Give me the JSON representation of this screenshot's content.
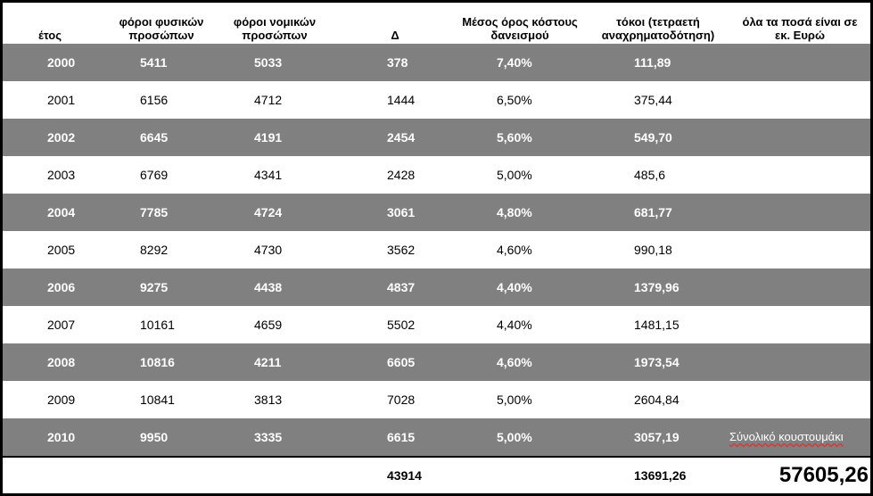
{
  "headers": {
    "year": "έτος",
    "fp": "φόροι φυσικών\nπροσώπων",
    "np": "φόροι νομικών\nπροσώπων",
    "d": "Δ",
    "rate": "Μέσος όρος κόστους\nδανεισμού",
    "interest": "τόκοι (τετραετή\nαναχρηματοδότηση)",
    "note": "όλα τα ποσά είναι σε\nεκ. Ευρώ"
  },
  "rows": [
    {
      "year": "2000",
      "fp": "5411",
      "np": "5033",
      "d": "378",
      "rate": "7,40%",
      "interest": "111,89"
    },
    {
      "year": "2001",
      "fp": "6156",
      "np": "4712",
      "d": "1444",
      "rate": "6,50%",
      "interest": "375,44"
    },
    {
      "year": "2002",
      "fp": "6645",
      "np": "4191",
      "d": "2454",
      "rate": "5,60%",
      "interest": "549,70"
    },
    {
      "year": "2003",
      "fp": "6769",
      "np": "4341",
      "d": "2428",
      "rate": "5,00%",
      "interest": "485,6"
    },
    {
      "year": "2004",
      "fp": "7785",
      "np": "4724",
      "d": "3061",
      "rate": "4,80%",
      "interest": "681,77"
    },
    {
      "year": "2005",
      "fp": "8292",
      "np": "4730",
      "d": "3562",
      "rate": "4,60%",
      "interest": "990,18"
    },
    {
      "year": "2006",
      "fp": "9275",
      "np": "4438",
      "d": "4837",
      "rate": "4,40%",
      "interest": "1379,96"
    },
    {
      "year": "2007",
      "fp": "10161",
      "np": "4659",
      "d": "5502",
      "rate": "4,40%",
      "interest": "1481,15"
    },
    {
      "year": "2008",
      "fp": "10816",
      "np": "4211",
      "d": "6605",
      "rate": "4,60%",
      "interest": "1973,54"
    },
    {
      "year": "2009",
      "fp": "10841",
      "np": "3813",
      "d": "7028",
      "rate": "5,00%",
      "interest": "2604,84"
    },
    {
      "year": "2010",
      "fp": "9950",
      "np": "3335",
      "d": "6615",
      "rate": "5,00%",
      "interest": "3057,19",
      "note": "Σύνολικό κουστουμάκι"
    }
  ],
  "totals": {
    "d": "43914",
    "interest": "13691,26",
    "grand": "57605,26"
  },
  "colors": {
    "dark_row": "#808080",
    "light_row": "#ffffff",
    "border": "#000000"
  }
}
